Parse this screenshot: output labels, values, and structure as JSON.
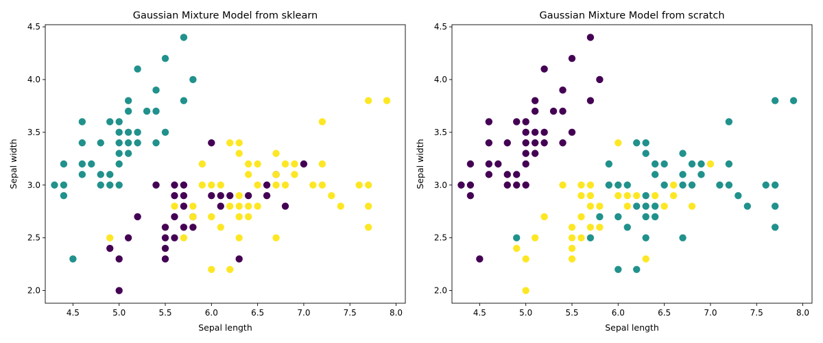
{
  "chart_data": [
    {
      "type": "scatter",
      "title": "Gaussian Mixture Model from sklearn",
      "xlabel": "Sepal length",
      "ylabel": "Sepal width",
      "xlim": [
        4.2,
        8.1
      ],
      "ylim": [
        1.88,
        4.52
      ],
      "xticks": [
        "4.5",
        "5.0",
        "5.5",
        "6.0",
        "6.5",
        "7.0",
        "7.5",
        "8.0"
      ],
      "yticks": [
        "2.0",
        "2.5",
        "3.0",
        "3.5",
        "4.0",
        "4.5"
      ],
      "grid": false,
      "colors": {
        "cluster_0": "#440154",
        "cluster_1": "#21918c",
        "cluster_2": "#fde725"
      },
      "points": [
        [
          4.3,
          3.0,
          1
        ],
        [
          4.4,
          3.2,
          1
        ],
        [
          4.4,
          3.0,
          1
        ],
        [
          4.4,
          2.9,
          1
        ],
        [
          4.5,
          2.3,
          1
        ],
        [
          4.6,
          3.6,
          1
        ],
        [
          4.6,
          3.4,
          1
        ],
        [
          4.6,
          3.2,
          1
        ],
        [
          4.6,
          3.1,
          1
        ],
        [
          4.7,
          3.2,
          1
        ],
        [
          4.8,
          3.4,
          1
        ],
        [
          4.8,
          3.1,
          1
        ],
        [
          4.8,
          3.0,
          1
        ],
        [
          4.9,
          3.6,
          1
        ],
        [
          4.9,
          3.1,
          1
        ],
        [
          4.9,
          3.0,
          1
        ],
        [
          5.0,
          3.6,
          1
        ],
        [
          5.0,
          3.5,
          1
        ],
        [
          5.0,
          3.4,
          1
        ],
        [
          5.0,
          3.3,
          1
        ],
        [
          5.0,
          3.2,
          1
        ],
        [
          5.0,
          3.0,
          1
        ],
        [
          5.1,
          3.8,
          1
        ],
        [
          5.1,
          3.7,
          1
        ],
        [
          5.1,
          3.5,
          1
        ],
        [
          5.1,
          3.4,
          1
        ],
        [
          5.1,
          3.3,
          1
        ],
        [
          5.2,
          4.1,
          1
        ],
        [
          5.2,
          3.5,
          1
        ],
        [
          5.2,
          3.4,
          1
        ],
        [
          5.3,
          3.7,
          1
        ],
        [
          5.4,
          3.9,
          1
        ],
        [
          5.4,
          3.7,
          1
        ],
        [
          5.4,
          3.4,
          1
        ],
        [
          5.5,
          4.2,
          1
        ],
        [
          5.5,
          3.5,
          1
        ],
        [
          5.7,
          4.4,
          1
        ],
        [
          5.7,
          3.8,
          1
        ],
        [
          5.8,
          4.0,
          1
        ],
        [
          4.9,
          2.4,
          0
        ],
        [
          5.0,
          2.3,
          0
        ],
        [
          5.0,
          2.0,
          0
        ],
        [
          5.1,
          2.5,
          0
        ],
        [
          5.2,
          2.7,
          0
        ],
        [
          5.4,
          3.0,
          0
        ],
        [
          5.5,
          2.6,
          0
        ],
        [
          5.5,
          2.5,
          0
        ],
        [
          5.5,
          2.4,
          0
        ],
        [
          5.5,
          2.3,
          0
        ],
        [
          5.6,
          3.0,
          0
        ],
        [
          5.6,
          2.9,
          0
        ],
        [
          5.6,
          2.7,
          0
        ],
        [
          5.6,
          2.5,
          0
        ],
        [
          5.7,
          3.0,
          0
        ],
        [
          5.7,
          2.9,
          0
        ],
        [
          5.7,
          2.8,
          0
        ],
        [
          5.7,
          2.6,
          0
        ],
        [
          5.8,
          2.7,
          0
        ],
        [
          5.8,
          2.6,
          0
        ],
        [
          6.0,
          3.4,
          0
        ],
        [
          6.0,
          2.9,
          0
        ],
        [
          6.1,
          2.9,
          0
        ],
        [
          6.1,
          2.8,
          0
        ],
        [
          6.2,
          2.9,
          0
        ],
        [
          6.3,
          2.3,
          0
        ],
        [
          6.4,
          2.9,
          0
        ],
        [
          6.6,
          3.0,
          0
        ],
        [
          6.6,
          2.9,
          0
        ],
        [
          6.7,
          3.1,
          0
        ],
        [
          6.8,
          2.8,
          0
        ],
        [
          7.0,
          3.2,
          0
        ],
        [
          4.9,
          2.5,
          2
        ],
        [
          5.6,
          2.8,
          2
        ],
        [
          5.7,
          2.5,
          2
        ],
        [
          5.8,
          2.8,
          2
        ],
        [
          5.8,
          2.7,
          2
        ],
        [
          5.9,
          3.2,
          2
        ],
        [
          5.9,
          3.0,
          2
        ],
        [
          6.0,
          3.0,
          2
        ],
        [
          6.0,
          2.7,
          2
        ],
        [
          6.0,
          2.2,
          2
        ],
        [
          6.1,
          3.0,
          2
        ],
        [
          6.1,
          2.6,
          2
        ],
        [
          6.2,
          3.4,
          2
        ],
        [
          6.2,
          2.8,
          2
        ],
        [
          6.2,
          2.2,
          2
        ],
        [
          6.3,
          3.4,
          2
        ],
        [
          6.3,
          3.3,
          2
        ],
        [
          6.3,
          2.9,
          2
        ],
        [
          6.3,
          2.8,
          2
        ],
        [
          6.3,
          2.7,
          2
        ],
        [
          6.3,
          2.5,
          2
        ],
        [
          6.4,
          3.2,
          2
        ],
        [
          6.4,
          3.1,
          2
        ],
        [
          6.4,
          2.8,
          2
        ],
        [
          6.4,
          2.7,
          2
        ],
        [
          6.5,
          3.2,
          2
        ],
        [
          6.5,
          3.0,
          2
        ],
        [
          6.5,
          2.8,
          2
        ],
        [
          6.7,
          3.3,
          2
        ],
        [
          6.7,
          3.1,
          2
        ],
        [
          6.7,
          3.0,
          2
        ],
        [
          6.7,
          2.5,
          2
        ],
        [
          6.8,
          3.2,
          2
        ],
        [
          6.8,
          3.0,
          2
        ],
        [
          6.9,
          3.2,
          2
        ],
        [
          6.9,
          3.1,
          2
        ],
        [
          7.1,
          3.0,
          2
        ],
        [
          7.2,
          3.6,
          2
        ],
        [
          7.2,
          3.2,
          2
        ],
        [
          7.2,
          3.0,
          2
        ],
        [
          7.3,
          2.9,
          2
        ],
        [
          7.4,
          2.8,
          2
        ],
        [
          7.6,
          3.0,
          2
        ],
        [
          7.7,
          3.8,
          2
        ],
        [
          7.7,
          3.0,
          2
        ],
        [
          7.7,
          2.8,
          2
        ],
        [
          7.7,
          2.6,
          2
        ],
        [
          7.9,
          3.8,
          2
        ]
      ]
    },
    {
      "type": "scatter",
      "title": "Gaussian Mixture Model from scratch",
      "xlabel": "Sepal length",
      "ylabel": "Sepal width",
      "xlim": [
        4.2,
        8.1
      ],
      "ylim": [
        1.88,
        4.52
      ],
      "xticks": [
        "4.5",
        "5.0",
        "5.5",
        "6.0",
        "6.5",
        "7.0",
        "7.5",
        "8.0"
      ],
      "yticks": [
        "2.0",
        "2.5",
        "3.0",
        "3.5",
        "4.0",
        "4.5"
      ],
      "grid": false,
      "colors": {
        "cluster_0": "#440154",
        "cluster_1": "#21918c",
        "cluster_2": "#fde725"
      },
      "points": [
        [
          4.3,
          3.0,
          0
        ],
        [
          4.4,
          3.2,
          0
        ],
        [
          4.4,
          3.0,
          0
        ],
        [
          4.4,
          2.9,
          0
        ],
        [
          4.5,
          2.3,
          0
        ],
        [
          4.6,
          3.6,
          0
        ],
        [
          4.6,
          3.4,
          0
        ],
        [
          4.6,
          3.2,
          0
        ],
        [
          4.6,
          3.1,
          0
        ],
        [
          4.7,
          3.2,
          0
        ],
        [
          4.8,
          3.4,
          0
        ],
        [
          4.8,
          3.1,
          0
        ],
        [
          4.8,
          3.0,
          0
        ],
        [
          4.9,
          3.6,
          0
        ],
        [
          4.9,
          3.1,
          0
        ],
        [
          4.9,
          3.0,
          0
        ],
        [
          5.0,
          3.6,
          0
        ],
        [
          5.0,
          3.5,
          0
        ],
        [
          5.0,
          3.4,
          0
        ],
        [
          5.0,
          3.3,
          0
        ],
        [
          5.0,
          3.2,
          0
        ],
        [
          5.0,
          3.0,
          0
        ],
        [
          5.1,
          3.8,
          0
        ],
        [
          5.1,
          3.7,
          0
        ],
        [
          5.1,
          3.5,
          0
        ],
        [
          5.1,
          3.4,
          0
        ],
        [
          5.1,
          3.3,
          0
        ],
        [
          5.2,
          4.1,
          0
        ],
        [
          5.2,
          3.5,
          0
        ],
        [
          5.2,
          3.4,
          0
        ],
        [
          5.3,
          3.7,
          0
        ],
        [
          5.4,
          3.9,
          0
        ],
        [
          5.4,
          3.7,
          0
        ],
        [
          5.4,
          3.4,
          0
        ],
        [
          5.5,
          4.2,
          0
        ],
        [
          5.5,
          3.5,
          0
        ],
        [
          5.7,
          4.4,
          0
        ],
        [
          5.7,
          3.8,
          0
        ],
        [
          5.8,
          4.0,
          0
        ],
        [
          4.9,
          2.5,
          1
        ],
        [
          5.7,
          2.5,
          1
        ],
        [
          5.8,
          2.7,
          1
        ],
        [
          5.9,
          3.2,
          1
        ],
        [
          5.9,
          3.0,
          1
        ],
        [
          6.0,
          3.0,
          1
        ],
        [
          6.0,
          2.7,
          1
        ],
        [
          6.0,
          2.2,
          1
        ],
        [
          6.1,
          3.0,
          1
        ],
        [
          6.1,
          2.6,
          1
        ],
        [
          6.2,
          3.4,
          1
        ],
        [
          6.2,
          2.8,
          1
        ],
        [
          6.2,
          2.2,
          1
        ],
        [
          6.3,
          3.4,
          1
        ],
        [
          6.3,
          3.3,
          1
        ],
        [
          6.3,
          2.9,
          1
        ],
        [
          6.3,
          2.8,
          1
        ],
        [
          6.3,
          2.7,
          1
        ],
        [
          6.3,
          2.5,
          1
        ],
        [
          6.4,
          3.2,
          1
        ],
        [
          6.4,
          3.1,
          1
        ],
        [
          6.4,
          2.8,
          1
        ],
        [
          6.4,
          2.7,
          1
        ],
        [
          6.5,
          3.2,
          1
        ],
        [
          6.5,
          3.0,
          1
        ],
        [
          6.7,
          3.3,
          1
        ],
        [
          6.7,
          3.1,
          1
        ],
        [
          6.7,
          3.0,
          1
        ],
        [
          6.7,
          2.5,
          1
        ],
        [
          6.8,
          3.2,
          1
        ],
        [
          6.8,
          3.0,
          1
        ],
        [
          6.9,
          3.2,
          1
        ],
        [
          6.9,
          3.1,
          1
        ],
        [
          7.1,
          3.0,
          1
        ],
        [
          7.2,
          3.6,
          1
        ],
        [
          7.2,
          3.2,
          1
        ],
        [
          7.2,
          3.0,
          1
        ],
        [
          7.3,
          2.9,
          1
        ],
        [
          7.4,
          2.8,
          1
        ],
        [
          7.6,
          3.0,
          1
        ],
        [
          7.7,
          3.8,
          1
        ],
        [
          7.7,
          3.0,
          1
        ],
        [
          7.7,
          2.8,
          1
        ],
        [
          7.7,
          2.6,
          1
        ],
        [
          7.9,
          3.8,
          1
        ],
        [
          4.9,
          2.4,
          2
        ],
        [
          5.0,
          2.3,
          2
        ],
        [
          5.0,
          2.0,
          2
        ],
        [
          5.1,
          2.5,
          2
        ],
        [
          5.2,
          2.7,
          2
        ],
        [
          5.4,
          3.0,
          2
        ],
        [
          5.5,
          2.6,
          2
        ],
        [
          5.5,
          2.5,
          2
        ],
        [
          5.5,
          2.4,
          2
        ],
        [
          5.5,
          2.3,
          2
        ],
        [
          5.6,
          3.0,
          2
        ],
        [
          5.6,
          2.9,
          2
        ],
        [
          5.6,
          2.7,
          2
        ],
        [
          5.6,
          2.5,
          2
        ],
        [
          5.7,
          3.0,
          2
        ],
        [
          5.7,
          2.9,
          2
        ],
        [
          5.7,
          2.8,
          2
        ],
        [
          5.7,
          2.6,
          2
        ],
        [
          5.8,
          2.8,
          2
        ],
        [
          5.8,
          2.6,
          2
        ],
        [
          6.0,
          3.4,
          2
        ],
        [
          6.0,
          2.9,
          2
        ],
        [
          6.1,
          2.9,
          2
        ],
        [
          6.1,
          2.8,
          2
        ],
        [
          6.2,
          2.9,
          2
        ],
        [
          6.3,
          2.3,
          2
        ],
        [
          6.4,
          2.9,
          2
        ],
        [
          6.5,
          2.8,
          2
        ],
        [
          6.6,
          3.0,
          2
        ],
        [
          6.6,
          2.9,
          2
        ],
        [
          6.8,
          2.8,
          2
        ],
        [
          7.0,
          3.2,
          2
        ]
      ]
    }
  ]
}
